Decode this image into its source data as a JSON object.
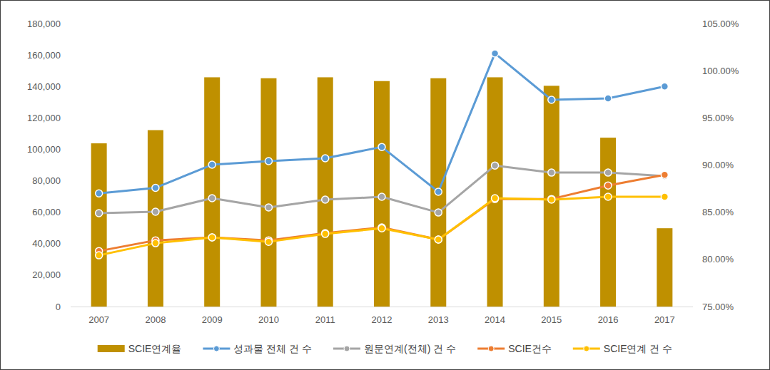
{
  "chart_data": {
    "type": "combo",
    "categories": [
      "2007",
      "2008",
      "2009",
      "2010",
      "2011",
      "2012",
      "2013",
      "2014",
      "2015",
      "2016",
      "2017"
    ],
    "series": [
      {
        "name": "SCIE연계율",
        "type": "bar",
        "axis": "y2",
        "color": "#bf9000",
        "values": [
          92.3,
          93.7,
          99.3,
          99.2,
          99.3,
          98.9,
          99.2,
          99.3,
          98.4,
          92.9,
          83.3
        ]
      },
      {
        "name": "성과물 전체 건 수",
        "type": "line",
        "marker": "circle",
        "color": "#5b9bd5",
        "values": [
          72000,
          75500,
          90200,
          92500,
          94300,
          101500,
          73000,
          161000,
          131500,
          132400,
          140000
        ]
      },
      {
        "name": "원문연계(전체) 건 수",
        "type": "line",
        "marker": "circle",
        "color": "#a5a5a5",
        "values": [
          59400,
          60300,
          68900,
          63000,
          68000,
          69800,
          59800,
          89700,
          85200,
          85200,
          83000
        ]
      },
      {
        "name": "SCIE건수",
        "type": "line",
        "marker": "circle",
        "color": "#ed7d31",
        "values": [
          35300,
          42100,
          44000,
          42100,
          46700,
          50300,
          42600,
          68400,
          68400,
          77000,
          83800
        ]
      },
      {
        "name": "SCIE연계 건 수",
        "type": "line",
        "marker": "circle",
        "color": "#ffc000",
        "values": [
          32600,
          40300,
          44000,
          41200,
          46200,
          49800,
          42600,
          68900,
          68000,
          69800,
          69800
        ]
      }
    ],
    "ylim": [
      0,
      180000
    ],
    "yticks": [
      0,
      {
        "value": 20000,
        "label": "20,000"
      },
      {
        "value": 40000,
        "label": "40,000"
      },
      {
        "value": 60000,
        "label": "60,000"
      },
      {
        "value": 80000,
        "label": "80,000"
      },
      {
        "value": 100000,
        "label": "100,000"
      },
      {
        "value": 120000,
        "label": "120,000"
      },
      {
        "value": 140000,
        "label": "140,000"
      },
      {
        "value": 160000,
        "label": "160,000"
      },
      {
        "value": 180000,
        "label": "180,000"
      }
    ],
    "y2lim": [
      75,
      105
    ],
    "y2ticks": [
      {
        "value": 75,
        "label": "75.00%"
      },
      {
        "value": 80,
        "label": "80.00%"
      },
      {
        "value": 85,
        "label": "85.00%"
      },
      {
        "value": 90,
        "label": "90.00%"
      },
      {
        "value": 95,
        "label": "95.00%"
      },
      {
        "value": 100,
        "label": "100.00%"
      },
      {
        "value": 105,
        "label": "105.00%"
      }
    ],
    "grid": false,
    "legend": "bottom"
  }
}
